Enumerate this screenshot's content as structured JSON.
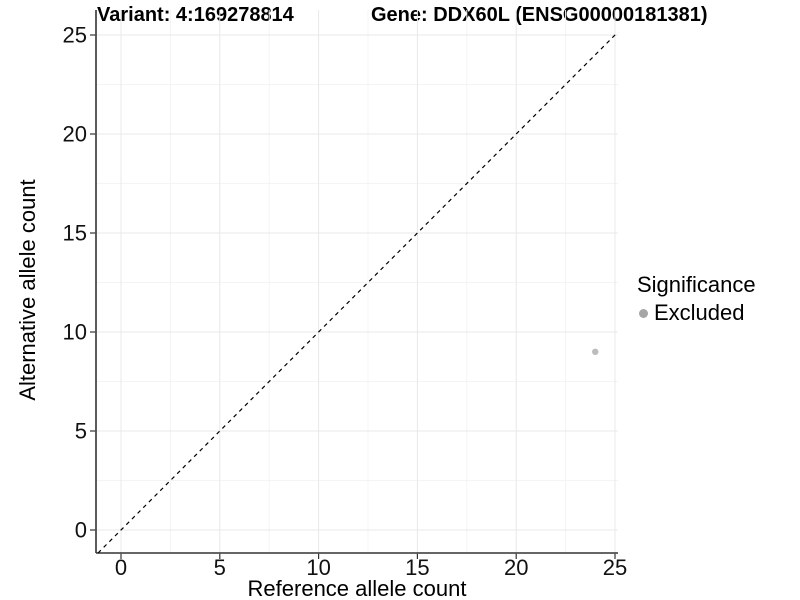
{
  "chart_data": {
    "type": "scatter",
    "title_left": "Variant: 4:169278814",
    "title_right": "Gene: DDX60L (ENSG00000181381)",
    "xlabel": "Reference allele count",
    "ylabel": "Alternative allele count",
    "xlim": [
      0,
      25
    ],
    "ylim": [
      0,
      25
    ],
    "xticks": [
      0,
      5,
      10,
      15,
      20,
      25
    ],
    "yticks": [
      0,
      5,
      10,
      15,
      20,
      25
    ],
    "grid": {
      "major": true,
      "minor": true
    },
    "identity_line": {
      "slope": 1,
      "intercept": 0,
      "style": "dashed",
      "color": "#000000"
    },
    "series": [
      {
        "name": "Excluded",
        "color": "#bcbcbc",
        "points": [
          {
            "x": 24,
            "y": 9
          }
        ]
      }
    ],
    "legend": {
      "title": "Significance",
      "position": "right",
      "items": [
        {
          "label": "Excluded",
          "color": "#a6a6a6"
        }
      ]
    }
  },
  "colors": {
    "background": "#ffffff",
    "grid_major": "#e8e8e8",
    "grid_minor": "#f4f4f4",
    "axis_line": "#333333",
    "tick_mark": "#333333",
    "tick_label": "#111111",
    "title_text": "#000000",
    "point": "#bcbcbc",
    "legend_point": "#a6a6a6",
    "identity_line": "#000000"
  }
}
